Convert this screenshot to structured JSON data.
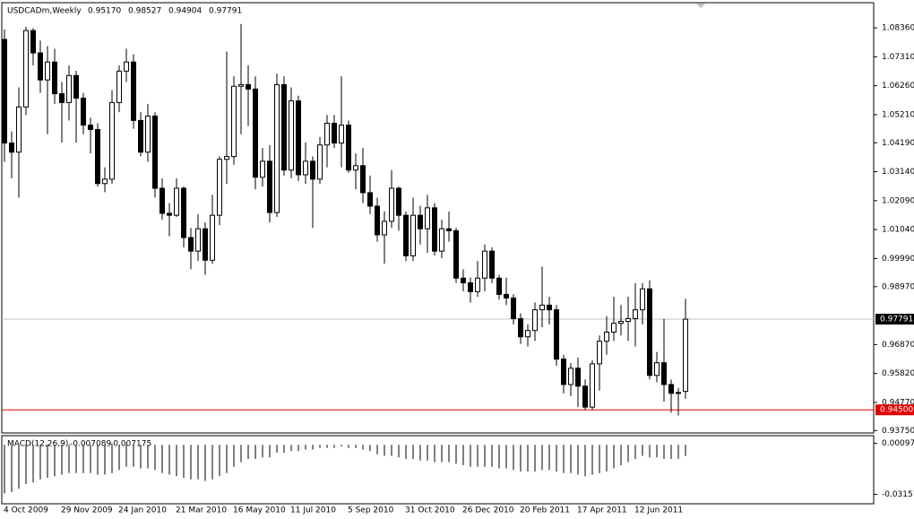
{
  "chart_data": [
    {
      "type": "candlestick",
      "title": "USDCADm,Weekly",
      "header_values": [
        "0.95170",
        "0.98527",
        "0.94904",
        "0.97791"
      ],
      "categories": [
        "4 Oct 2009",
        null,
        null,
        null,
        null,
        null,
        null,
        null,
        "29 Nov 2009",
        null,
        null,
        null,
        null,
        null,
        null,
        null,
        "24 Jan 2010",
        null,
        null,
        null,
        null,
        null,
        null,
        null,
        "21 Mar 2010",
        null,
        null,
        null,
        null,
        null,
        null,
        null,
        "16 May 2010",
        null,
        null,
        null,
        null,
        null,
        null,
        null,
        "11 Jul 2010",
        null,
        null,
        null,
        null,
        null,
        null,
        null,
        "5 Sep 2010",
        null,
        null,
        null,
        null,
        null,
        null,
        null,
        "31 Oct 2010",
        null,
        null,
        null,
        null,
        null,
        null,
        null,
        "26 Dec 2010",
        null,
        null,
        null,
        null,
        null,
        null,
        null,
        "20 Feb 2011",
        null,
        null,
        null,
        null,
        null,
        null,
        null,
        "17 Apr 2011",
        null,
        null,
        null,
        null,
        null,
        null,
        null,
        "12 Jun 2011",
        null,
        null,
        null,
        null,
        null,
        null,
        null
      ],
      "open": [
        1.0794,
        1.0418,
        1.0385,
        1.0549,
        1.0826,
        1.0745,
        1.0647,
        1.0712,
        1.0597,
        1.0565,
        1.0663,
        1.0581,
        1.0483,
        1.0467,
        1.0271,
        1.0287,
        1.0565,
        1.0679,
        1.0712,
        1.05,
        1.0385,
        1.0516,
        1.0254,
        1.0163,
        1.0156,
        1.0254,
        1.0075,
        1.0026,
        1.0107,
        0.9993,
        1.0156,
        1.0359,
        1.0369,
        1.0624,
        1.063,
        1.0614,
        1.0294,
        1.0352,
        1.0166,
        1.063,
        1.032,
        1.0571,
        1.0303,
        1.0352,
        1.0287,
        1.0411,
        1.049,
        1.0418,
        1.0483,
        1.032,
        1.0336,
        1.0238,
        1.0189,
        1.0085,
        1.0134,
        1.0254,
        1.0156,
        1.0009,
        1.0156,
        1.0107,
        1.0183,
        1.0026,
        1.0107,
        1.01,
        0.9928,
        0.9911,
        0.9879,
        0.9928,
        1.0026,
        0.9928,
        0.9869,
        0.9856,
        0.9781,
        0.9715,
        0.9738,
        0.9813,
        0.983,
        0.9813,
        0.9634,
        0.9542,
        0.9601,
        0.9536,
        0.946,
        0.9617,
        0.9699,
        0.9732,
        0.9764,
        0.9771,
        0.9781,
        0.9813,
        0.9889,
        0.9575,
        0.9621,
        0.9542,
        0.951,
        0.9517
      ],
      "high": [
        1.083,
        1.046,
        1.062,
        1.084,
        1.0835,
        1.079,
        1.077,
        1.076,
        1.064,
        1.07,
        1.068,
        1.06,
        1.051,
        1.049,
        1.033,
        1.061,
        1.07,
        1.076,
        1.074,
        1.053,
        1.056,
        1.053,
        1.029,
        1.02,
        1.029,
        1.026,
        1.011,
        1.016,
        1.013,
        1.023,
        1.037,
        1.075,
        1.066,
        1.085,
        1.07,
        1.066,
        1.04,
        1.041,
        1.067,
        1.066,
        1.062,
        1.059,
        1.042,
        1.037,
        1.044,
        1.052,
        1.052,
        1.066,
        1.05,
        1.038,
        1.04,
        1.03,
        1.022,
        1.017,
        1.032,
        1.026,
        1.017,
        1.022,
        1.019,
        1.023,
        1.02,
        1.014,
        1.017,
        1.011,
        0.996,
        0.993,
        0.999,
        1.005,
        1.004,
        0.994,
        0.993,
        0.987,
        0.98,
        0.976,
        0.984,
        0.997,
        0.986,
        0.983,
        0.965,
        0.962,
        0.964,
        0.956,
        0.963,
        0.972,
        0.979,
        0.986,
        0.983,
        0.986,
        0.991,
        0.991,
        0.992,
        0.966,
        0.978,
        0.956,
        0.953,
        0.98527
      ],
      "low": [
        1.035,
        1.029,
        1.022,
        1.052,
        1.07,
        1.06,
        1.045,
        1.056,
        1.042,
        1.05,
        1.042,
        1.045,
        1.038,
        1.026,
        1.024,
        1.027,
        1.053,
        1.064,
        1.047,
        1.037,
        1.035,
        1.022,
        1.014,
        1.008,
        1.015,
        1.004,
        0.996,
        0.999,
        0.994,
        0.998,
        1.012,
        1.027,
        1.034,
        1.045,
        1.048,
        1.025,
        1.026,
        1.013,
        1.015,
        1.03,
        1.029,
        1.028,
        1.027,
        1.011,
        1.027,
        1.033,
        1.04,
        1.033,
        1.031,
        1.025,
        1.02,
        1.016,
        1.006,
        0.998,
        1.011,
        1.01,
        0.999,
        0.999,
        1.005,
        1.002,
        1.001,
        1.0,
        1.006,
        0.991,
        0.988,
        0.984,
        0.986,
        0.988,
        0.991,
        0.985,
        0.983,
        0.976,
        0.969,
        0.968,
        0.97,
        0.975,
        0.976,
        0.961,
        0.951,
        0.95,
        0.946,
        0.945,
        0.945,
        0.952,
        0.965,
        0.97,
        0.972,
        0.97,
        0.968,
        0.976,
        0.956,
        0.955,
        0.948,
        0.944,
        0.943,
        0.94904
      ],
      "close": [
        1.0418,
        1.0385,
        1.0549,
        1.0826,
        1.0745,
        1.0647,
        1.0712,
        1.0597,
        1.0565,
        1.0663,
        1.0581,
        1.0483,
        1.0467,
        1.0271,
        1.0287,
        1.0565,
        1.0679,
        1.0712,
        1.05,
        1.0385,
        1.0516,
        1.0254,
        1.0163,
        1.0156,
        1.0254,
        1.0075,
        1.0026,
        1.0107,
        0.9993,
        1.0156,
        1.0359,
        1.0369,
        1.0624,
        1.063,
        1.0614,
        1.0294,
        1.0352,
        1.0166,
        1.063,
        1.032,
        1.0571,
        1.0303,
        1.0352,
        1.0287,
        1.0411,
        1.049,
        1.0418,
        1.0483,
        1.032,
        1.0336,
        1.0238,
        1.0189,
        1.0085,
        1.0134,
        1.0254,
        1.0156,
        1.0009,
        1.0156,
        1.0107,
        1.0183,
        1.0026,
        1.0107,
        1.01,
        0.9928,
        0.9911,
        0.9879,
        0.9928,
        1.0026,
        0.9928,
        0.9869,
        0.9856,
        0.9781,
        0.9715,
        0.9738,
        0.9813,
        0.983,
        0.9813,
        0.9634,
        0.9542,
        0.9601,
        0.9536,
        0.946,
        0.9617,
        0.9699,
        0.9732,
        0.9764,
        0.9771,
        0.9781,
        0.9813,
        0.9889,
        0.9575,
        0.9621,
        0.9542,
        0.951,
        0.9513,
        0.97791
      ],
      "ylim": [
        0.9363,
        1.0924
      ],
      "yticks": [
        {
          "value": 1.0836,
          "label": "1.08360"
        },
        {
          "value": 1.0731,
          "label": "1.07310"
        },
        {
          "value": 1.0626,
          "label": "1.06260"
        },
        {
          "value": 1.0521,
          "label": "1.05210"
        },
        {
          "value": 1.0419,
          "label": "1.04190"
        },
        {
          "value": 1.0314,
          "label": "1.03140"
        },
        {
          "value": 1.0209,
          "label": "1.02090"
        },
        {
          "value": 1.0104,
          "label": "1.01040"
        },
        {
          "value": 0.9999,
          "label": "0.99990"
        },
        {
          "value": 0.9897,
          "label": "0.98970"
        },
        {
          "value": 0.9687,
          "label": "0.96870"
        },
        {
          "value": 0.9582,
          "label": "0.95820"
        },
        {
          "value": 0.9477,
          "label": "0.94770"
        },
        {
          "value": 0.9375,
          "label": "0.93750"
        }
      ],
      "current_price": {
        "value": 0.97791,
        "label": "0.97791",
        "color": "#c0c0c0"
      },
      "level_line": {
        "value": 0.945,
        "label": "0.94500",
        "color": "#e00000"
      }
    },
    {
      "type": "bar",
      "title": "MACD(12,26,9)",
      "header_values": [
        "-0.007089",
        "-0.007175"
      ],
      "values": [
        -0.031,
        -0.03,
        -0.028,
        -0.025,
        -0.024,
        -0.022,
        -0.021,
        -0.02,
        -0.019,
        -0.018,
        -0.018,
        -0.018,
        -0.018,
        -0.019,
        -0.019,
        -0.018,
        -0.016,
        -0.014,
        -0.014,
        -0.015,
        -0.015,
        -0.016,
        -0.018,
        -0.019,
        -0.02,
        -0.021,
        -0.022,
        -0.022,
        -0.023,
        -0.022,
        -0.02,
        -0.018,
        -0.014,
        -0.011,
        -0.009,
        -0.009,
        -0.008,
        -0.008,
        -0.005,
        -0.005,
        -0.004,
        -0.004,
        -0.003,
        -0.003,
        -0.002,
        -0.002,
        -0.002,
        -0.001,
        -0.002,
        -0.002,
        -0.003,
        -0.004,
        -0.006,
        -0.007,
        -0.007,
        -0.008,
        -0.009,
        -0.009,
        -0.01,
        -0.01,
        -0.011,
        -0.011,
        -0.011,
        -0.012,
        -0.013,
        -0.014,
        -0.014,
        -0.014,
        -0.014,
        -0.015,
        -0.015,
        -0.016,
        -0.017,
        -0.017,
        -0.017,
        -0.016,
        -0.016,
        -0.017,
        -0.018,
        -0.018,
        -0.019,
        -0.02,
        -0.019,
        -0.018,
        -0.017,
        -0.015,
        -0.013,
        -0.011,
        -0.009,
        -0.007,
        -0.008,
        -0.008,
        -0.009,
        -0.009,
        -0.009,
        -0.007089
      ],
      "ylim": [
        -0.0376,
        0.0053
      ],
      "yticks": [
        {
          "value": 0.000977,
          "label": "0.000977"
        },
        {
          "value": -0.03157,
          "label": "-0.03157"
        }
      ]
    }
  ]
}
